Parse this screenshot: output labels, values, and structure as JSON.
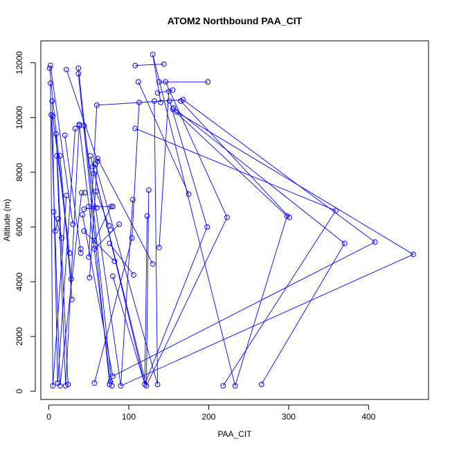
{
  "chart_data": {
    "type": "line",
    "title": "ATOM2 Northbound PAA_CIT",
    "xlabel": "PAA_CIT",
    "ylabel": "Altitude (m)",
    "xlim": [
      -10,
      475
    ],
    "ylim": [
      -300,
      12800
    ],
    "xticks": [
      0,
      100,
      200,
      300,
      400
    ],
    "yticks": [
      0,
      2000,
      4000,
      6000,
      8000,
      10000,
      12000
    ],
    "grid": false,
    "series": [
      {
        "color": "#0000ff",
        "marker": "open-circle",
        "points": [
          [
            1,
            11800
          ],
          [
            2,
            11900
          ],
          [
            2,
            11250
          ],
          [
            4,
            10600
          ],
          [
            3,
            10100
          ],
          [
            5,
            10050
          ],
          [
            9,
            9400
          ],
          [
            10,
            8600
          ],
          [
            14,
            8600
          ],
          [
            6,
            6550
          ],
          [
            8,
            5850
          ],
          [
            12,
            6300
          ],
          [
            16,
            5600
          ],
          [
            5,
            200
          ],
          [
            11,
            300
          ],
          [
            14,
            200
          ],
          [
            22,
            11750
          ],
          [
            20,
            9350
          ],
          [
            22,
            7150
          ],
          [
            26,
            5050
          ],
          [
            28,
            4100
          ],
          [
            29,
            3350
          ],
          [
            30,
            6100
          ],
          [
            24,
            250
          ],
          [
            21,
            200
          ],
          [
            33,
            9600
          ],
          [
            37,
            11800
          ],
          [
            37,
            11600
          ],
          [
            38,
            9700
          ],
          [
            38,
            9750
          ],
          [
            41,
            7250
          ],
          [
            42,
            6450
          ],
          [
            40,
            5200
          ],
          [
            40,
            5050
          ],
          [
            44,
            9700
          ],
          [
            45,
            7250
          ],
          [
            44,
            6650
          ],
          [
            44,
            5850
          ],
          [
            50,
            6750
          ],
          [
            50,
            4900
          ],
          [
            51,
            4150
          ],
          [
            52,
            8600
          ],
          [
            55,
            8200
          ],
          [
            56,
            7950
          ],
          [
            58,
            8300
          ],
          [
            59,
            7300
          ],
          [
            60,
            6700
          ],
          [
            57,
            5500
          ],
          [
            57,
            5200
          ],
          [
            60,
            10450
          ],
          [
            61,
            8500
          ],
          [
            61,
            8400
          ],
          [
            57,
            300
          ],
          [
            75,
            6050
          ],
          [
            76,
            5400
          ],
          [
            77,
            5900
          ],
          [
            78,
            6750
          ],
          [
            80,
            6750
          ],
          [
            82,
            4750
          ],
          [
            80,
            4200
          ],
          [
            88,
            6100
          ],
          [
            80,
            550
          ],
          [
            79,
            200
          ],
          [
            77,
            350
          ],
          [
            76,
            250
          ],
          [
            90,
            200
          ],
          [
            105,
            7000
          ],
          [
            104,
            5600
          ],
          [
            106,
            4250
          ],
          [
            108,
            9600
          ],
          [
            108,
            11900
          ],
          [
            112,
            11300
          ],
          [
            113,
            10550
          ],
          [
            120,
            250
          ],
          [
            122,
            200
          ],
          [
            123,
            6400
          ],
          [
            125,
            7350
          ],
          [
            130,
            4650
          ],
          [
            136,
            250
          ],
          [
            138,
            5250
          ],
          [
            130,
            12300
          ],
          [
            132,
            10600
          ],
          [
            136,
            10900
          ],
          [
            138,
            11300
          ],
          [
            140,
            10550
          ],
          [
            144,
            11950
          ],
          [
            146,
            11300
          ],
          [
            150,
            10950
          ],
          [
            151,
            10600
          ],
          [
            155,
            11000
          ],
          [
            155,
            10300
          ],
          [
            156,
            10350
          ],
          [
            160,
            10200
          ],
          [
            165,
            10600
          ],
          [
            168,
            10650
          ],
          [
            175,
            7200
          ],
          [
            198,
            6000
          ],
          [
            199,
            11300
          ],
          [
            223,
            6350
          ],
          [
            218,
            200
          ],
          [
            233,
            200
          ],
          [
            266,
            250
          ],
          [
            298,
            6400
          ],
          [
            301,
            6350
          ],
          [
            359,
            6600
          ],
          [
            370,
            5400
          ],
          [
            408,
            5450
          ],
          [
            456,
            5000
          ]
        ],
        "segments": [
          [
            [
              1,
              11800
            ],
            [
              28,
              4100
            ]
          ],
          [
            [
              2,
              11900
            ],
            [
              30,
              6100
            ]
          ],
          [
            [
              2,
              11250
            ],
            [
              5,
              200
            ]
          ],
          [
            [
              4,
              10600
            ],
            [
              11,
              300
            ]
          ],
          [
            [
              3,
              10100
            ],
            [
              14,
              200
            ]
          ],
          [
            [
              5,
              10050
            ],
            [
              26,
              5050
            ]
          ],
          [
            [
              9,
              9400
            ],
            [
              24,
              250
            ]
          ],
          [
            [
              10,
              8600
            ],
            [
              21,
              200
            ]
          ],
          [
            [
              14,
              8600
            ],
            [
              29,
              3350
            ]
          ],
          [
            [
              6,
              6550
            ],
            [
              16,
              5600
            ]
          ],
          [
            [
              8,
              5850
            ],
            [
              12,
              6300
            ]
          ],
          [
            [
              22,
              11750
            ],
            [
              61,
              8400
            ]
          ],
          [
            [
              20,
              9350
            ],
            [
              40,
              5050
            ]
          ],
          [
            [
              22,
              7150
            ],
            [
              5,
              200
            ]
          ],
          [
            [
              33,
              9600
            ],
            [
              11,
              300
            ]
          ],
          [
            [
              37,
              11800
            ],
            [
              79,
              200
            ]
          ],
          [
            [
              37,
              11600
            ],
            [
              76,
              250
            ]
          ],
          [
            [
              38,
              9700
            ],
            [
              77,
              350
            ]
          ],
          [
            [
              38,
              9750
            ],
            [
              21,
              200
            ]
          ],
          [
            [
              41,
              7250
            ],
            [
              14,
              200
            ]
          ],
          [
            [
              42,
              6450
            ],
            [
              80,
              550
            ]
          ],
          [
            [
              44,
              9700
            ],
            [
              90,
              200
            ]
          ],
          [
            [
              44,
              6650
            ],
            [
              60,
              6700
            ]
          ],
          [
            [
              44,
              5850
            ],
            [
              82,
              4750
            ]
          ],
          [
            [
              50,
              6750
            ],
            [
              80,
              6750
            ]
          ],
          [
            [
              50,
              4900
            ],
            [
              60,
              10450
            ]
          ],
          [
            [
              51,
              4150
            ],
            [
              61,
              8500
            ]
          ],
          [
            [
              52,
              8600
            ],
            [
              120,
              250
            ]
          ],
          [
            [
              55,
              8200
            ],
            [
              122,
              200
            ]
          ],
          [
            [
              57,
              5200
            ],
            [
              88,
              6100
            ]
          ],
          [
            [
              57,
              300
            ],
            [
              104,
              5600
            ]
          ],
          [
            [
              58,
              8300
            ],
            [
              136,
              250
            ]
          ],
          [
            [
              59,
              7300
            ],
            [
              75,
              6050
            ]
          ],
          [
            [
              61,
              8500
            ],
            [
              130,
              4650
            ]
          ],
          [
            [
              60,
              10450
            ],
            [
              168,
              10650
            ]
          ],
          [
            [
              76,
              5400
            ],
            [
              106,
              4250
            ]
          ],
          [
            [
              78,
              6750
            ],
            [
              57,
              5500
            ]
          ],
          [
            [
              80,
              4200
            ],
            [
              120,
              250
            ]
          ],
          [
            [
              105,
              7000
            ],
            [
              90,
              200
            ]
          ],
          [
            [
              108,
              9600
            ],
            [
              359,
              6600
            ]
          ],
          [
            [
              108,
              11900
            ],
            [
              144,
              11950
            ]
          ],
          [
            [
              112,
              11300
            ],
            [
              175,
              7200
            ]
          ],
          [
            [
              113,
              10550
            ],
            [
              104,
              5600
            ]
          ],
          [
            [
              120,
              250
            ],
            [
              123,
              6400
            ]
          ],
          [
            [
              122,
              200
            ],
            [
              125,
              7350
            ]
          ],
          [
            [
              136,
              250
            ],
            [
              132,
              10600
            ]
          ],
          [
            [
              138,
              5250
            ],
            [
              150,
              10950
            ]
          ],
          [
            [
              130,
              12300
            ],
            [
              140,
              10550
            ]
          ],
          [
            [
              138,
              11300
            ],
            [
              199,
              11300
            ]
          ],
          [
            [
              146,
              11300
            ],
            [
              223,
              6350
            ]
          ],
          [
            [
              151,
              10600
            ],
            [
              198,
              6000
            ]
          ],
          [
            [
              155,
              10300
            ],
            [
              298,
              6400
            ]
          ],
          [
            [
              156,
              10350
            ],
            [
              370,
              5400
            ]
          ],
          [
            [
              160,
              10200
            ],
            [
              456,
              5000
            ]
          ],
          [
            [
              165,
              10600
            ],
            [
              301,
              6350
            ]
          ],
          [
            [
              168,
              10650
            ],
            [
              408,
              5450
            ]
          ],
          [
            [
              198,
              6000
            ],
            [
              120,
              250
            ]
          ],
          [
            [
              223,
              6350
            ],
            [
              122,
              200
            ]
          ],
          [
            [
              218,
              200
            ],
            [
              359,
              6600
            ]
          ],
          [
            [
              233,
              200
            ],
            [
              298,
              6400
            ]
          ],
          [
            [
              266,
              250
            ],
            [
              370,
              5400
            ]
          ],
          [
            [
              80,
              550
            ],
            [
              408,
              5450
            ]
          ],
          [
            [
              90,
              200
            ],
            [
              456,
              5000
            ]
          ],
          [
            [
              136,
              10900
            ],
            [
              155,
              11000
            ]
          ],
          [
            [
              130,
              12300
            ],
            [
              233,
              200
            ]
          ]
        ]
      }
    ]
  }
}
